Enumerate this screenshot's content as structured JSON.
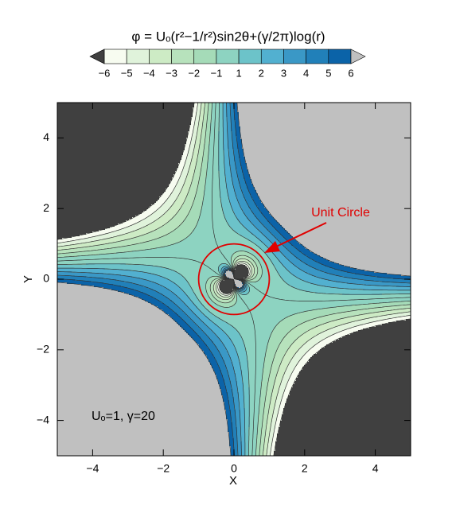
{
  "chart_data": {
    "type": "contour",
    "title": "φ = Uₒ(r²−1/r²)sin2θ+(γ/2π)log(r)",
    "x_label": "X",
    "y_label": "Y",
    "parameters": {
      "U0": 1,
      "gamma": 20
    },
    "levels": [
      {
        "value": -6,
        "label": "−6"
      },
      {
        "value": -5,
        "label": "−5"
      },
      {
        "value": -4,
        "label": "−4"
      },
      {
        "value": -3,
        "label": "−3"
      },
      {
        "value": -2,
        "label": "−2"
      },
      {
        "value": -1,
        "label": "−1"
      },
      1,
      2,
      3,
      4,
      5,
      6
    ],
    "line_levels": [
      -6,
      -5,
      -4,
      -3,
      -2,
      -1,
      0,
      1,
      2,
      3,
      4,
      5,
      6
    ],
    "colors": [
      "#f7fcf0",
      "#e0f3db",
      "#cdebc5",
      "#b7e2bc",
      "#a5dbb8",
      "#8dd3c1",
      "#6cc3c9",
      "#52b0d0",
      "#3a98c6",
      "#2180b9",
      "#0b63a8"
    ],
    "under_color": "#404040",
    "over_color": "#c0c0c0",
    "line_color": "#333333",
    "xlim": [
      -5,
      5
    ],
    "ylim": [
      -5,
      5
    ],
    "xticks": [
      {
        "value": -4,
        "label": "−4"
      },
      {
        "value": -2,
        "label": "−2"
      },
      0,
      2,
      4
    ],
    "yticks": [
      {
        "value": -4,
        "label": "−4"
      },
      {
        "value": -2,
        "label": "−2"
      },
      0,
      2,
      4
    ],
    "unit_circle": {
      "radius": 1,
      "color": "#e00000",
      "label": "Unit Circle"
    },
    "annotation": "Uₒ=1, γ=20"
  }
}
